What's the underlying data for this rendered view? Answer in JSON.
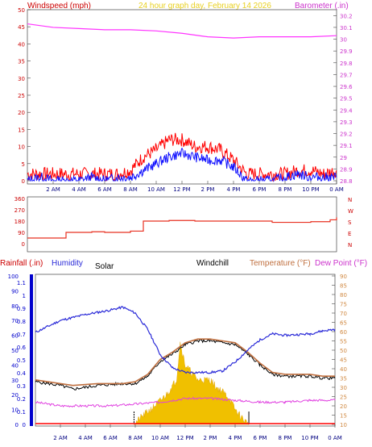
{
  "header": {
    "left_title": "Windspeed (mph)",
    "center_title": "24 hour graph day, February 14 2026",
    "right_title": "Barometer (.in)"
  },
  "colors": {
    "windspeed_red": "#ff0000",
    "gust_blue": "#1010ff",
    "barometer_magenta": "#ff33ff",
    "title_yellow": "#e8d020",
    "direction_red": "#e83020",
    "humidity_blue": "#2a2ad8",
    "temperature_brown": "#c07040",
    "dewpoint_magenta": "#e040e0",
    "windchill_black": "#000000",
    "solar_fill": "#f0c000",
    "rain_axis_blue": "#0000cc",
    "temp_axis_orange": "#d08840"
  },
  "chart_data": [
    {
      "type": "line",
      "name": "top",
      "x_tick_labels": [
        "2 AM",
        "4 AM",
        "6 AM",
        "8 AM",
        "10 AM",
        "12 PM",
        "2 PM",
        "4 PM",
        "6 PM",
        "8 PM",
        "10 PM",
        "0 AM"
      ],
      "y_left_ticks": [
        "0",
        "5",
        "10",
        "15",
        "20",
        "25",
        "30",
        "35",
        "40",
        "45",
        "50"
      ],
      "y_left_range": [
        0,
        50
      ],
      "y_right_ticks": [
        "28.8",
        "28.9",
        "29",
        "29.1",
        "29.2",
        "29.3",
        "29.4",
        "29.5",
        "29.6",
        "29.7",
        "29.8",
        "29.9",
        "30",
        "30.1",
        "30.2"
      ],
      "y_right_range": [
        28.8,
        30.25
      ],
      "series": [
        {
          "name": "Windspeed (mph)",
          "axis": "left",
          "points": [
            [
              0,
              2
            ],
            [
              1,
              2
            ],
            [
              2,
              2
            ],
            [
              3,
              2
            ],
            [
              4,
              2
            ],
            [
              5,
              2
            ],
            [
              6,
              2
            ],
            [
              7,
              2
            ],
            [
              8,
              3
            ],
            [
              9,
              7
            ],
            [
              10,
              9
            ],
            [
              11,
              12
            ],
            [
              12,
              12
            ],
            [
              13,
              10
            ],
            [
              14,
              10
            ],
            [
              15,
              9
            ],
            [
              16,
              6
            ],
            [
              17,
              2
            ],
            [
              18,
              2
            ],
            [
              19,
              2
            ],
            [
              20,
              2
            ],
            [
              21,
              3
            ],
            [
              22,
              3
            ],
            [
              23,
              2
            ],
            [
              24,
              3
            ]
          ]
        },
        {
          "name": "Wind gust (mph)",
          "axis": "left",
          "points": [
            [
              0,
              0
            ],
            [
              1,
              1
            ],
            [
              2,
              0
            ],
            [
              3,
              0
            ],
            [
              4,
              0
            ],
            [
              5,
              1
            ],
            [
              6,
              0
            ],
            [
              7,
              1
            ],
            [
              8,
              1
            ],
            [
              9,
              3
            ],
            [
              10,
              5
            ],
            [
              11,
              7
            ],
            [
              12,
              8
            ],
            [
              13,
              7
            ],
            [
              14,
              6
            ],
            [
              15,
              6
            ],
            [
              16,
              4
            ],
            [
              17,
              0
            ],
            [
              18,
              0
            ],
            [
              19,
              0
            ],
            [
              20,
              1
            ],
            [
              21,
              2
            ],
            [
              22,
              1
            ],
            [
              23,
              1
            ],
            [
              24,
              1
            ]
          ]
        },
        {
          "name": "Barometer (.in)",
          "axis": "right",
          "points": [
            [
              0,
              30.13
            ],
            [
              2,
              30.1
            ],
            [
              4,
              30.09
            ],
            [
              6,
              30.08
            ],
            [
              8,
              30.08
            ],
            [
              10,
              30.07
            ],
            [
              12,
              30.05
            ],
            [
              14,
              30.02
            ],
            [
              16,
              30.01
            ],
            [
              18,
              30.02
            ],
            [
              20,
              30.02
            ],
            [
              22,
              30.02
            ],
            [
              24,
              30.03
            ]
          ]
        }
      ]
    },
    {
      "type": "line",
      "name": "wind-direction",
      "x_tick_labels": [
        "2 AM",
        "4 AM",
        "6 AM",
        "8 AM",
        "10 AM",
        "12 PM",
        "2 PM",
        "4 PM",
        "6 PM",
        "8 PM",
        "10 PM",
        "0 AM"
      ],
      "y_left_ticks": [
        "0",
        "90",
        "180",
        "270",
        "360"
      ],
      "y_range": [
        0,
        360
      ],
      "y_right_labels": [
        "N",
        "W",
        "S",
        "E",
        "N"
      ],
      "series": [
        {
          "name": "Wind direction",
          "points": [
            [
              0,
              45
            ],
            [
              2,
              45
            ],
            [
              3,
              90
            ],
            [
              5,
              95
            ],
            [
              6,
              90
            ],
            [
              8,
              100
            ],
            [
              9,
              180
            ],
            [
              11,
              185
            ],
            [
              13,
              180
            ],
            [
              16,
              180
            ],
            [
              18,
              180
            ],
            [
              19,
              170
            ],
            [
              22,
              175
            ],
            [
              23.5,
              190
            ],
            [
              24,
              210
            ]
          ]
        }
      ]
    },
    {
      "type": "line",
      "name": "bottom",
      "legend": [
        "Rainfall (.in)",
        "Humidity",
        "Solar",
        "Windchill",
        "Temperature (°F)",
        "Dew Point (°F)"
      ],
      "x_tick_labels": [
        "2 AM",
        "4 AM",
        "6 AM",
        "8 AM",
        "10 AM",
        "12 PM",
        "2 PM",
        "4 PM",
        "6 PM",
        "8 PM",
        "10 PM",
        "0 AM"
      ],
      "rain_ticks": [
        "0",
        "0.1",
        "0.2",
        "0.3",
        "0.4",
        "0.5",
        "0.6",
        "0.7",
        "0.8",
        "0.9",
        "1",
        "1.1"
      ],
      "humidity_ticks": [
        "0",
        "10",
        "20",
        "30",
        "40",
        "50",
        "60",
        "70",
        "80",
        "90",
        "100"
      ],
      "temperature_ticks": [
        "10",
        "15",
        "20",
        "25",
        "30",
        "35",
        "40",
        "45",
        "50",
        "55",
        "60",
        "65",
        "70",
        "75",
        "80",
        "85",
        "90"
      ],
      "temperature_range": [
        10,
        90
      ],
      "series": [
        {
          "name": "Humidity",
          "unit": "%",
          "points": [
            [
              0,
              62
            ],
            [
              2,
              70
            ],
            [
              4,
              74
            ],
            [
              6,
              77
            ],
            [
              7,
              79
            ],
            [
              8,
              75
            ],
            [
              9,
              64
            ],
            [
              10,
              47
            ],
            [
              11,
              38
            ],
            [
              12,
              35
            ],
            [
              14,
              35
            ],
            [
              15,
              36
            ],
            [
              16,
              42
            ],
            [
              17,
              50
            ],
            [
              18,
              57
            ],
            [
              19,
              61
            ],
            [
              20,
              60
            ],
            [
              22,
              61
            ],
            [
              23,
              63
            ],
            [
              24,
              64
            ]
          ]
        },
        {
          "name": "Temperature (°F)",
          "unit": "°F",
          "points": [
            [
              0,
              34
            ],
            [
              2,
              32
            ],
            [
              3,
              31
            ],
            [
              5,
              32
            ],
            [
              7,
              32
            ],
            [
              8,
              33
            ],
            [
              9,
              37
            ],
            [
              10,
              45
            ],
            [
              11,
              49
            ],
            [
              12,
              54
            ],
            [
              13,
              56
            ],
            [
              14,
              56
            ],
            [
              15,
              55
            ],
            [
              16,
              54
            ],
            [
              17,
              49
            ],
            [
              18,
              43
            ],
            [
              19,
              38
            ],
            [
              20,
              37
            ],
            [
              22,
              37
            ],
            [
              23,
              36
            ],
            [
              24,
              36
            ]
          ]
        },
        {
          "name": "Windchill",
          "unit": "°F",
          "points": [
            [
              0,
              33
            ],
            [
              2,
              31
            ],
            [
              3,
              29
            ],
            [
              5,
              31
            ],
            [
              7,
              32
            ],
            [
              8,
              32
            ],
            [
              9,
              36
            ],
            [
              10,
              44
            ],
            [
              11,
              48
            ],
            [
              12,
              53
            ],
            [
              13,
              55
            ],
            [
              14,
              55
            ],
            [
              15,
              54
            ],
            [
              16,
              53
            ],
            [
              17,
              48
            ],
            [
              18,
              42
            ],
            [
              19,
              37
            ],
            [
              20,
              36
            ],
            [
              22,
              36
            ],
            [
              23,
              35
            ],
            [
              24,
              35
            ]
          ]
        },
        {
          "name": "Dew Point (°F)",
          "unit": "°F",
          "points": [
            [
              0,
              22
            ],
            [
              2,
              20
            ],
            [
              4,
              20
            ],
            [
              6,
              20
            ],
            [
              8,
              21
            ],
            [
              10,
              22
            ],
            [
              12,
              24
            ],
            [
              14,
              24
            ],
            [
              16,
              23
            ],
            [
              18,
              22
            ],
            [
              20,
              22
            ],
            [
              22,
              23
            ],
            [
              24,
              23
            ]
          ]
        },
        {
          "name": "Solar",
          "points": [
            [
              7.9,
              0
            ],
            [
              8.5,
              5
            ],
            [
              9.5,
              12
            ],
            [
              10.5,
              20
            ],
            [
              11.3,
              30
            ],
            [
              11.6,
              55
            ],
            [
              12,
              40
            ],
            [
              12.5,
              35
            ],
            [
              13,
              30
            ],
            [
              14,
              30
            ],
            [
              14.5,
              25
            ],
            [
              15,
              22
            ],
            [
              15.5,
              18
            ],
            [
              16,
              10
            ],
            [
              16.7,
              3
            ],
            [
              17.1,
              0
            ]
          ]
        },
        {
          "name": "Rainfall (.in)",
          "points": [
            [
              0,
              0
            ],
            [
              24,
              0
            ]
          ]
        }
      ]
    }
  ]
}
